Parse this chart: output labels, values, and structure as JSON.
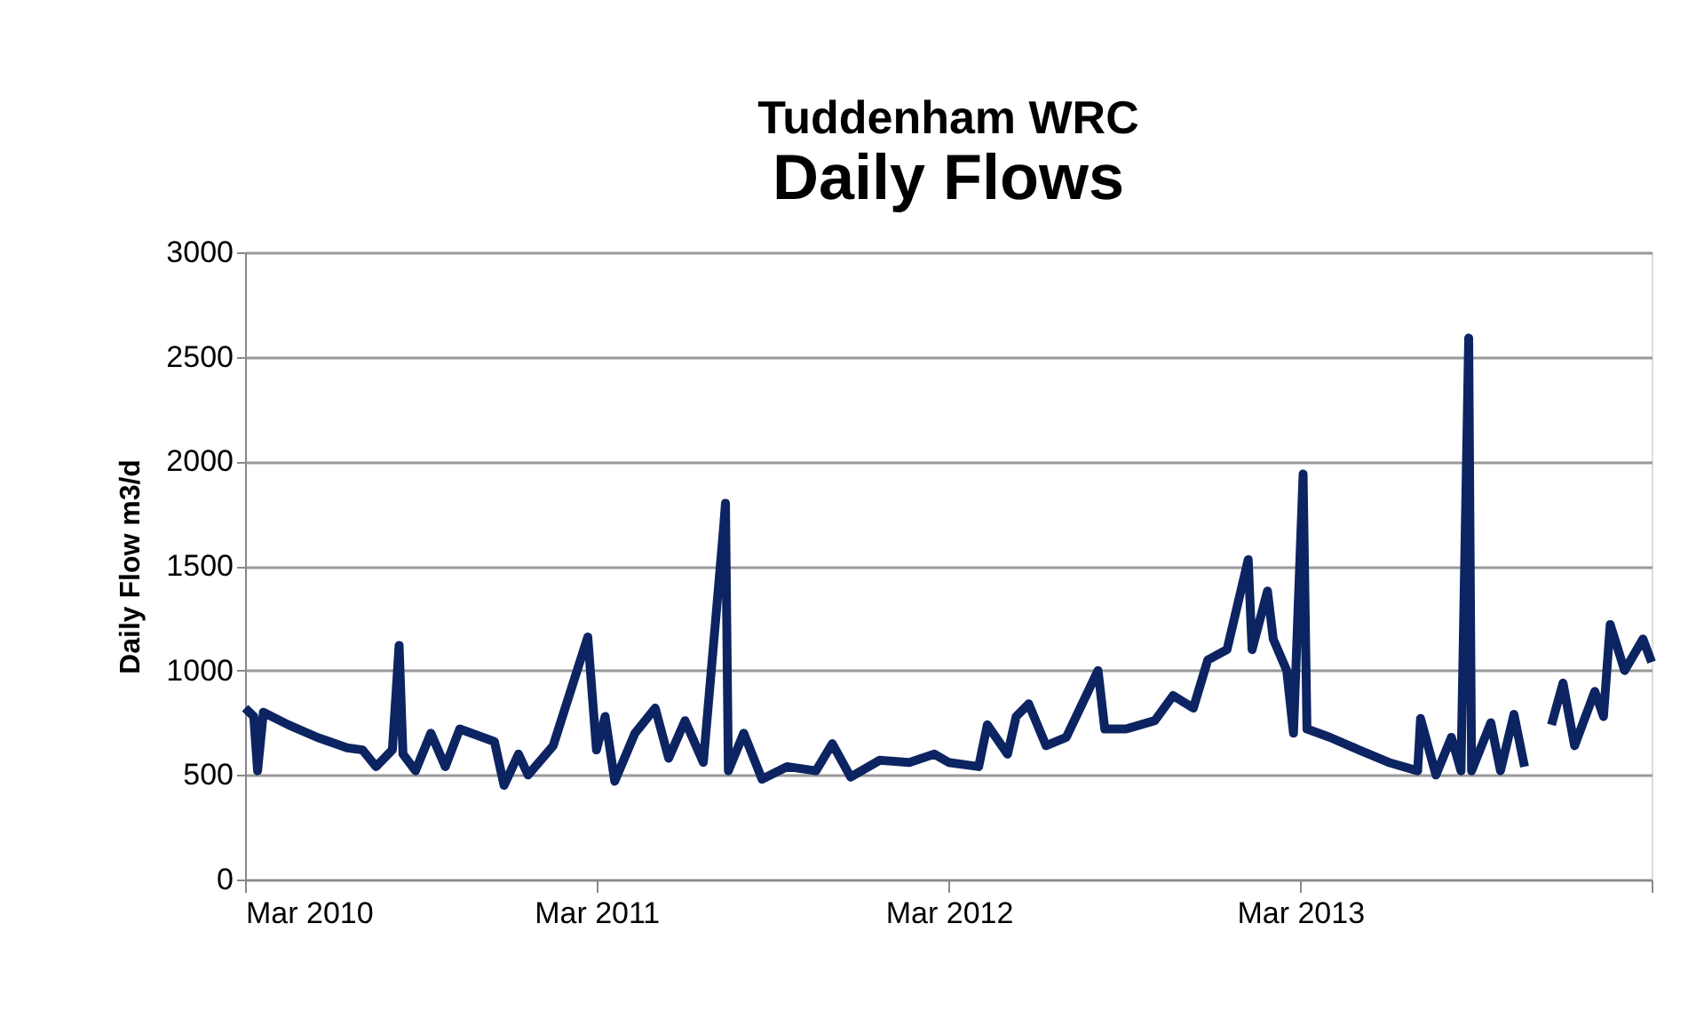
{
  "chart_data": {
    "type": "line",
    "title": "Tuddenham WRC",
    "subtitle": "Daily Flows",
    "ylabel": "Daily Flow  m3/d",
    "x": [
      "2010-03-01",
      "2010-03-10",
      "2010-03-14",
      "2010-03-20",
      "2010-04-15",
      "2010-05-15",
      "2010-06-15",
      "2010-07-01",
      "2010-07-15",
      "2010-08-01",
      "2010-08-08",
      "2010-08-12",
      "2010-08-25",
      "2010-09-10",
      "2010-09-25",
      "2010-10-10",
      "2010-11-15",
      "2010-11-25",
      "2010-12-10",
      "2010-12-20",
      "2011-01-15",
      "2011-02-20",
      "2011-03-01",
      "2011-03-10",
      "2011-03-20",
      "2011-04-10",
      "2011-05-01",
      "2011-05-15",
      "2011-06-01",
      "2011-06-20",
      "2011-07-11",
      "2011-07-13",
      "2011-07-16",
      "2011-08-01",
      "2011-08-20",
      "2011-09-15",
      "2011-10-15",
      "2011-11-01",
      "2011-11-20",
      "2011-12-20",
      "2012-01-20",
      "2012-02-15",
      "2012-03-01",
      "2012-04-01",
      "2012-04-10",
      "2012-05-01",
      "2012-05-10",
      "2012-05-23",
      "2012-06-10",
      "2012-07-01",
      "2012-08-03",
      "2012-08-10",
      "2012-09-01",
      "2012-10-01",
      "2012-10-20",
      "2012-11-10",
      "2012-11-25",
      "2012-12-15",
      "2013-01-06",
      "2013-01-10",
      "2013-01-26",
      "2013-02-01",
      "2013-02-15",
      "2013-02-22",
      "2013-03-04",
      "2013-03-08",
      "2013-04-01",
      "2013-05-01",
      "2013-06-01",
      "2013-07-01",
      "2013-07-04",
      "2013-07-20",
      "2013-08-05",
      "2013-08-15",
      "2013-08-23",
      "2013-08-26",
      "2013-09-15",
      "2013-09-25",
      "2013-10-09",
      "2013-10-20",
      "2013-11-01",
      "2013-11-17",
      "2013-11-29",
      "2013-12-11",
      "2014-01-01",
      "2014-01-10",
      "2014-01-17",
      "2014-02-01",
      "2014-02-20",
      "2014-03-01"
    ],
    "series": [
      {
        "color": "#0c2461",
        "values": [
          820,
          780,
          520,
          800,
          740,
          680,
          630,
          620,
          540,
          620,
          1120,
          600,
          520,
          700,
          540,
          720,
          660,
          450,
          600,
          500,
          640,
          1160,
          620,
          780,
          470,
          700,
          820,
          580,
          760,
          560,
          1680,
          1800,
          520,
          700,
          480,
          540,
          520,
          650,
          490,
          570,
          560,
          600,
          560,
          540,
          740,
          600,
          780,
          840,
          640,
          680,
          1000,
          720,
          720,
          760,
          880,
          820,
          1050,
          1100,
          1530,
          1100,
          1380,
          1150,
          1000,
          700,
          1940,
          720,
          680,
          620,
          560,
          520,
          770,
          500,
          680,
          520,
          2590,
          520,
          750,
          520,
          790,
          540,
          null,
          740,
          940,
          640,
          900,
          780,
          1220,
          1000,
          1150,
          1040
        ]
      }
    ],
    "xlim": [
      "2010-03-01",
      "2014-03-01"
    ],
    "xticks": [
      {
        "value": "2010-03-01",
        "label": "Mar 2010"
      },
      {
        "value": "2011-03-01",
        "label": "Mar 2011"
      },
      {
        "value": "2012-03-01",
        "label": "Mar 2012"
      },
      {
        "value": "2013-03-01",
        "label": "Mar 2013"
      },
      {
        "value": "2014-03-01",
        "label": null
      }
    ],
    "ylim": [
      0,
      3000
    ],
    "yticks": [
      0,
      500,
      1000,
      1500,
      2000,
      2500,
      3000
    ],
    "grid": "y",
    "legend": false
  }
}
